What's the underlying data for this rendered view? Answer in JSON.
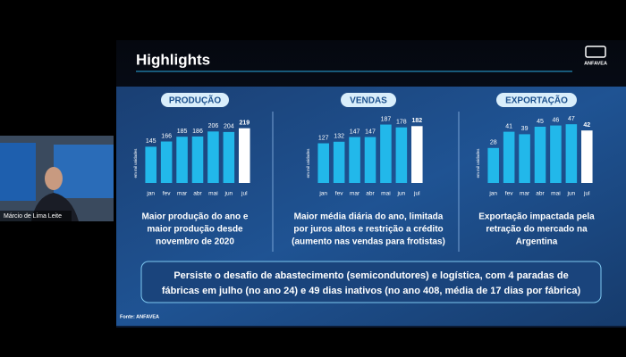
{
  "header": {
    "title": "Highlights",
    "logo": "ANFAVEA"
  },
  "chart_data": [
    {
      "type": "bar",
      "title": "PRODUÇÃO",
      "y_label": "em mil unidades",
      "categories": [
        "jan",
        "fev",
        "mar",
        "abr",
        "mai",
        "jun",
        "jul"
      ],
      "values": [
        145,
        166,
        185,
        186,
        206,
        204,
        219
      ],
      "colors": [
        "#22b8ea",
        "#22b8ea",
        "#22b8ea",
        "#22b8ea",
        "#22b8ea",
        "#22b8ea",
        "#ffffff"
      ],
      "ylim": [
        0,
        250
      ],
      "caption": [
        "Maior produção do ano e",
        "maior produção desde",
        "novembro de 2020"
      ]
    },
    {
      "type": "bar",
      "title": "VENDAS",
      "y_label": "em mil unidades",
      "categories": [
        "jan",
        "fev",
        "mar",
        "abr",
        "mai",
        "jun",
        "jul"
      ],
      "values": [
        127,
        132,
        147,
        147,
        187,
        178,
        182
      ],
      "colors": [
        "#22b8ea",
        "#22b8ea",
        "#22b8ea",
        "#22b8ea",
        "#22b8ea",
        "#22b8ea",
        "#ffffff"
      ],
      "ylim": [
        0,
        200
      ],
      "caption": [
        "Maior média diária do ano, limitada",
        "por juros altos e restrição a crédito",
        "(aumento nas vendas para frotistas)"
      ]
    },
    {
      "type": "bar",
      "title": "EXPORTAÇÃO",
      "y_label": "em mil unidades",
      "categories": [
        "jan",
        "fev",
        "mar",
        "abr",
        "mai",
        "jun",
        "jul"
      ],
      "values": [
        28,
        41,
        39,
        45,
        46,
        47,
        42
      ],
      "colors": [
        "#22b8ea",
        "#22b8ea",
        "#22b8ea",
        "#22b8ea",
        "#22b8ea",
        "#22b8ea",
        "#ffffff"
      ],
      "ylim": [
        0,
        50
      ],
      "caption": [
        "Exportação impactada pela",
        "retração do mercado na",
        "Argentina"
      ]
    }
  ],
  "summary": [
    "Persiste o desafio de abastecimento (semicondutores) e logística, com 4 paradas de",
    "fábricas em julho (no ano 24) e 49 dias inativos (no ano 408, média de 17 dias por fábrica)"
  ],
  "source": "Fonte: ANFAVEA",
  "webcam": {
    "name": "Márcio de Lima Leite"
  }
}
